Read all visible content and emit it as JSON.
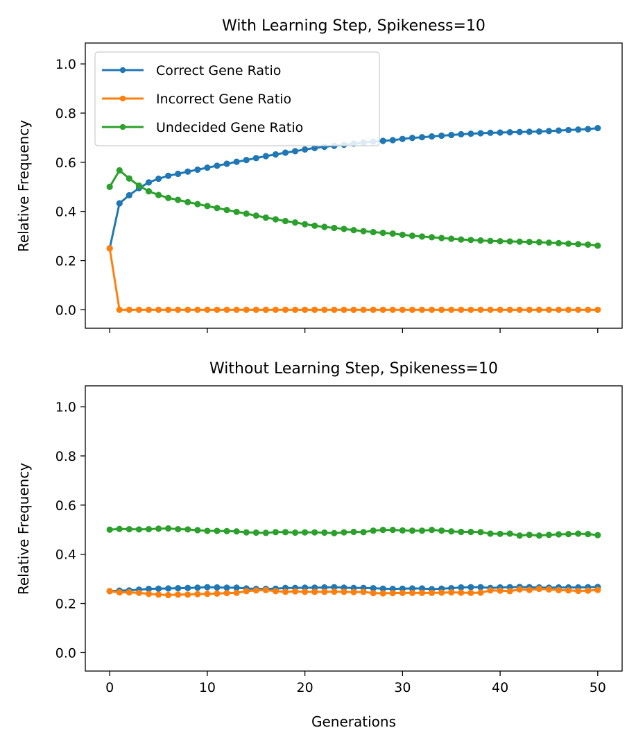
{
  "chart_data": [
    {
      "type": "line",
      "title": "With Learning Step, Spikeness=10",
      "xlabel": "",
      "ylabel": "Relative Frequency",
      "xlim": [
        -2.5,
        52.5
      ],
      "ylim": [
        -0.075,
        1.085
      ],
      "x_ticks": [
        "0",
        "10",
        "20",
        "30",
        "40",
        "50"
      ],
      "x_tick_labels_shown": false,
      "y_ticks": [
        "0.0",
        "0.2",
        "0.4",
        "0.6",
        "0.8",
        "1.0"
      ],
      "grid": false,
      "legend": "top-left",
      "x": [
        0,
        1,
        2,
        3,
        4,
        5,
        6,
        7,
        8,
        9,
        10,
        11,
        12,
        13,
        14,
        15,
        16,
        17,
        18,
        19,
        20,
        21,
        22,
        23,
        24,
        25,
        26,
        27,
        28,
        29,
        30,
        31,
        32,
        33,
        34,
        35,
        36,
        37,
        38,
        39,
        40,
        41,
        42,
        43,
        44,
        45,
        46,
        47,
        48,
        49,
        50
      ],
      "series": [
        {
          "name": "Correct Gene Ratio",
          "color": "#1f77b4",
          "values": [
            0.25,
            0.433,
            0.466,
            0.495,
            0.518,
            0.533,
            0.545,
            0.553,
            0.562,
            0.57,
            0.578,
            0.586,
            0.594,
            0.602,
            0.609,
            0.617,
            0.625,
            0.632,
            0.639,
            0.645,
            0.652,
            0.658,
            0.663,
            0.667,
            0.671,
            0.676,
            0.68,
            0.684,
            0.687,
            0.69,
            0.695,
            0.699,
            0.702,
            0.705,
            0.708,
            0.711,
            0.714,
            0.716,
            0.718,
            0.72,
            0.721,
            0.722,
            0.723,
            0.724,
            0.725,
            0.727,
            0.729,
            0.731,
            0.733,
            0.735,
            0.739
          ]
        },
        {
          "name": "Incorrect Gene Ratio",
          "color": "#ff7f0e",
          "values": [
            0.25,
            0.0,
            0.0,
            0.0,
            0.0,
            0.0,
            0.0,
            0.0,
            0.0,
            0.0,
            0.0,
            0.0,
            0.0,
            0.0,
            0.0,
            0.0,
            0.0,
            0.0,
            0.0,
            0.0,
            0.0,
            0.0,
            0.0,
            0.0,
            0.0,
            0.0,
            0.0,
            0.0,
            0.0,
            0.0,
            0.0,
            0.0,
            0.0,
            0.0,
            0.0,
            0.0,
            0.0,
            0.0,
            0.0,
            0.0,
            0.0,
            0.0,
            0.0,
            0.0,
            0.0,
            0.0,
            0.0,
            0.0,
            0.0,
            0.0,
            0.0
          ]
        },
        {
          "name": "Undecided Gene Ratio",
          "color": "#2ca02c",
          "values": [
            0.5,
            0.567,
            0.534,
            0.505,
            0.482,
            0.467,
            0.455,
            0.447,
            0.438,
            0.43,
            0.422,
            0.414,
            0.406,
            0.398,
            0.391,
            0.383,
            0.375,
            0.368,
            0.361,
            0.355,
            0.348,
            0.342,
            0.337,
            0.333,
            0.329,
            0.324,
            0.32,
            0.316,
            0.313,
            0.31,
            0.305,
            0.301,
            0.298,
            0.295,
            0.292,
            0.289,
            0.286,
            0.284,
            0.282,
            0.28,
            0.279,
            0.278,
            0.277,
            0.276,
            0.275,
            0.273,
            0.271,
            0.269,
            0.267,
            0.265,
            0.261
          ]
        }
      ]
    },
    {
      "type": "line",
      "title": "Without Learning Step, Spikeness=10",
      "xlabel": "Generations",
      "ylabel": "Relative Frequency",
      "xlim": [
        -2.5,
        52.5
      ],
      "ylim": [
        -0.075,
        1.085
      ],
      "x_ticks": [
        "0",
        "10",
        "20",
        "30",
        "40",
        "50"
      ],
      "x_tick_labels_shown": true,
      "y_ticks": [
        "0.0",
        "0.2",
        "0.4",
        "0.6",
        "0.8",
        "1.0"
      ],
      "grid": false,
      "legend": "none",
      "x": [
        0,
        1,
        2,
        3,
        4,
        5,
        6,
        7,
        8,
        9,
        10,
        11,
        12,
        13,
        14,
        15,
        16,
        17,
        18,
        19,
        20,
        21,
        22,
        23,
        24,
        25,
        26,
        27,
        28,
        29,
        30,
        31,
        32,
        33,
        34,
        35,
        36,
        37,
        38,
        39,
        40,
        41,
        42,
        43,
        44,
        45,
        46,
        47,
        48,
        49,
        50
      ],
      "series": [
        {
          "name": "Correct Gene Ratio",
          "color": "#1f77b4",
          "values": [
            0.25,
            0.252,
            0.253,
            0.256,
            0.259,
            0.26,
            0.261,
            0.262,
            0.263,
            0.264,
            0.266,
            0.265,
            0.264,
            0.264,
            0.261,
            0.259,
            0.259,
            0.26,
            0.263,
            0.263,
            0.264,
            0.264,
            0.265,
            0.266,
            0.264,
            0.263,
            0.263,
            0.262,
            0.26,
            0.259,
            0.26,
            0.261,
            0.261,
            0.258,
            0.26,
            0.262,
            0.265,
            0.266,
            0.266,
            0.263,
            0.265,
            0.266,
            0.267,
            0.266,
            0.265,
            0.264,
            0.265,
            0.265,
            0.265,
            0.266,
            0.267
          ]
        },
        {
          "name": "Incorrect Gene Ratio",
          "color": "#ff7f0e",
          "values": [
            0.25,
            0.245,
            0.245,
            0.243,
            0.239,
            0.236,
            0.234,
            0.236,
            0.236,
            0.238,
            0.239,
            0.24,
            0.242,
            0.243,
            0.25,
            0.253,
            0.254,
            0.25,
            0.247,
            0.249,
            0.247,
            0.247,
            0.247,
            0.248,
            0.247,
            0.246,
            0.247,
            0.242,
            0.241,
            0.242,
            0.243,
            0.243,
            0.243,
            0.243,
            0.244,
            0.245,
            0.244,
            0.243,
            0.244,
            0.253,
            0.252,
            0.25,
            0.257,
            0.255,
            0.259,
            0.257,
            0.254,
            0.253,
            0.251,
            0.252,
            0.255
          ]
        },
        {
          "name": "Undecided Gene Ratio",
          "color": "#2ca02c",
          "values": [
            0.5,
            0.503,
            0.502,
            0.501,
            0.502,
            0.504,
            0.505,
            0.502,
            0.501,
            0.498,
            0.495,
            0.495,
            0.494,
            0.493,
            0.489,
            0.488,
            0.487,
            0.49,
            0.49,
            0.488,
            0.489,
            0.489,
            0.488,
            0.486,
            0.489,
            0.491,
            0.49,
            0.496,
            0.499,
            0.499,
            0.497,
            0.496,
            0.496,
            0.499,
            0.496,
            0.493,
            0.491,
            0.491,
            0.49,
            0.484,
            0.483,
            0.484,
            0.476,
            0.479,
            0.476,
            0.479,
            0.481,
            0.482,
            0.484,
            0.482,
            0.478
          ]
        }
      ]
    }
  ]
}
